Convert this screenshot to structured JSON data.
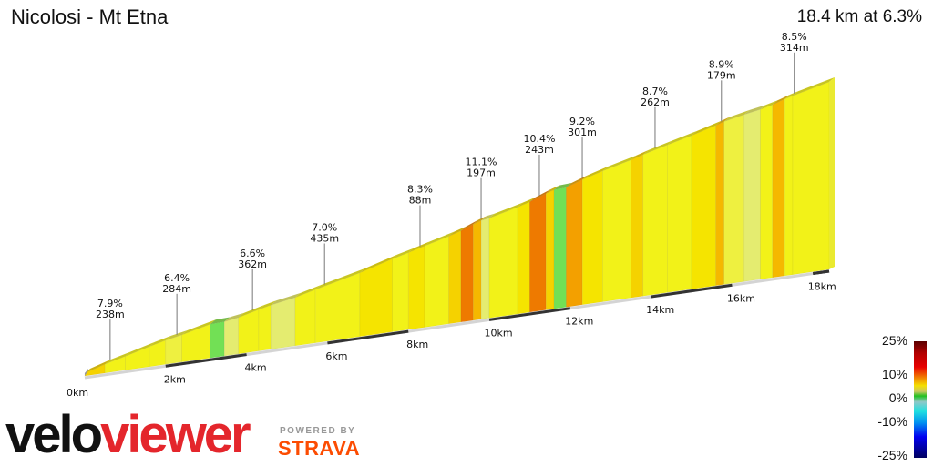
{
  "header": {
    "title": "Nicolosi - Mt Etna",
    "summary": "18.4 km at 6.3%"
  },
  "chart_data": {
    "type": "area",
    "title": "Nicolosi - Mt Etna",
    "total_km": 18.4,
    "avg_gradient_pct": 6.3,
    "x_ticks": [
      "0km",
      "2km",
      "4km",
      "6km",
      "8km",
      "10km",
      "12km",
      "14km",
      "16km",
      "18km"
    ],
    "x_tick_values": [
      0,
      2,
      4,
      6,
      8,
      10,
      12,
      14,
      16,
      18
    ],
    "segments": [
      [
        0,
        0.5,
        8
      ],
      [
        0.5,
        1.0,
        6.5
      ],
      [
        1.0,
        1.6,
        6.8
      ],
      [
        1.6,
        2.0,
        6.4
      ],
      [
        2.0,
        2.4,
        5
      ],
      [
        2.4,
        3.1,
        6.2
      ],
      [
        3.1,
        3.45,
        1
      ],
      [
        3.45,
        3.8,
        4
      ],
      [
        3.8,
        4.3,
        6.6
      ],
      [
        4.3,
        4.6,
        6
      ],
      [
        4.6,
        5.2,
        4.5
      ],
      [
        5.2,
        5.7,
        6.5
      ],
      [
        5.7,
        6.8,
        6.2
      ],
      [
        6.8,
        7.6,
        7.5
      ],
      [
        7.6,
        8.0,
        6.5
      ],
      [
        8.0,
        8.4,
        7.2
      ],
      [
        8.4,
        9.0,
        6.8
      ],
      [
        9.0,
        9.3,
        8
      ],
      [
        9.3,
        9.6,
        10.5
      ],
      [
        9.6,
        9.8,
        8.5
      ],
      [
        9.8,
        10.0,
        4
      ],
      [
        10.0,
        10.7,
        6.5
      ],
      [
        10.7,
        11.0,
        7.5
      ],
      [
        11.0,
        11.4,
        10
      ],
      [
        11.4,
        11.6,
        8
      ],
      [
        11.6,
        11.9,
        1.5
      ],
      [
        11.9,
        12.3,
        9
      ],
      [
        12.3,
        12.8,
        7.5
      ],
      [
        12.8,
        13.5,
        6.5
      ],
      [
        13.5,
        13.8,
        7.8
      ],
      [
        13.8,
        14.4,
        6.8
      ],
      [
        14.4,
        15.0,
        6.5
      ],
      [
        15.0,
        15.6,
        7.2
      ],
      [
        15.6,
        15.8,
        8.5
      ],
      [
        15.8,
        16.3,
        5.5
      ],
      [
        16.3,
        16.7,
        4.5
      ],
      [
        16.7,
        17.0,
        6.5
      ],
      [
        17.0,
        17.3,
        8.6
      ],
      [
        17.3,
        17.5,
        6.8
      ],
      [
        17.5,
        18.4,
        6.3
      ]
    ],
    "annotations": [
      {
        "km": 0.56,
        "gradient": "7.9%",
        "length": "238m"
      },
      {
        "km": 2.21,
        "gradient": "6.4%",
        "length": "284m"
      },
      {
        "km": 4.08,
        "gradient": "6.6%",
        "length": "362m"
      },
      {
        "km": 5.86,
        "gradient": "7.0%",
        "length": "435m"
      },
      {
        "km": 8.22,
        "gradient": "8.3%",
        "length": "88m"
      },
      {
        "km": 9.73,
        "gradient": "11.1%",
        "length": "197m"
      },
      {
        "km": 11.17,
        "gradient": "10.4%",
        "length": "243m"
      },
      {
        "km": 12.23,
        "gradient": "9.2%",
        "length": "301m"
      },
      {
        "km": 14.03,
        "gradient": "8.7%",
        "length": "262m"
      },
      {
        "km": 15.67,
        "gradient": "8.9%",
        "length": "179m"
      },
      {
        "km": 17.47,
        "gradient": "8.5%",
        "length": "314m"
      }
    ],
    "legend": {
      "labels": [
        "25%",
        "10%",
        "0%",
        "-10%",
        "-25%"
      ]
    }
  },
  "branding": {
    "logo_a": "velo",
    "logo_b": "viewer",
    "powered": "POWERED BY",
    "strava": "STRAVA"
  }
}
